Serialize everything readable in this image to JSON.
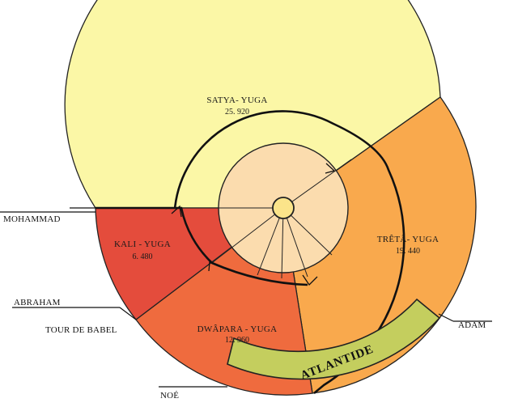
{
  "yugas": {
    "satya": {
      "name": "SATYA- YUGA",
      "years": "25. 920",
      "color": "#fbf7a6"
    },
    "treta": {
      "name": "TRÊTÂ- YUGA",
      "years": "19. 440",
      "color": "#f9a94d"
    },
    "dwapara": {
      "name": "DWÂPARA - YUGA",
      "years": "12. 960",
      "color": "#ef6b3e"
    },
    "kali": {
      "name": "KALI - YUGA",
      "years": "6. 480",
      "color": "#e44c3c"
    }
  },
  "inner_color": "#fbdcae",
  "atlantide": {
    "label": "ATLANTIDE",
    "color": "#c4ce5e"
  },
  "markers": {
    "mohammad": "MOHAMMAD",
    "abraham": "ABRAHAM",
    "tour_de_babel": "TOUR DE BABEL",
    "adam": "ADAM",
    "noe": "NOÉ"
  }
}
